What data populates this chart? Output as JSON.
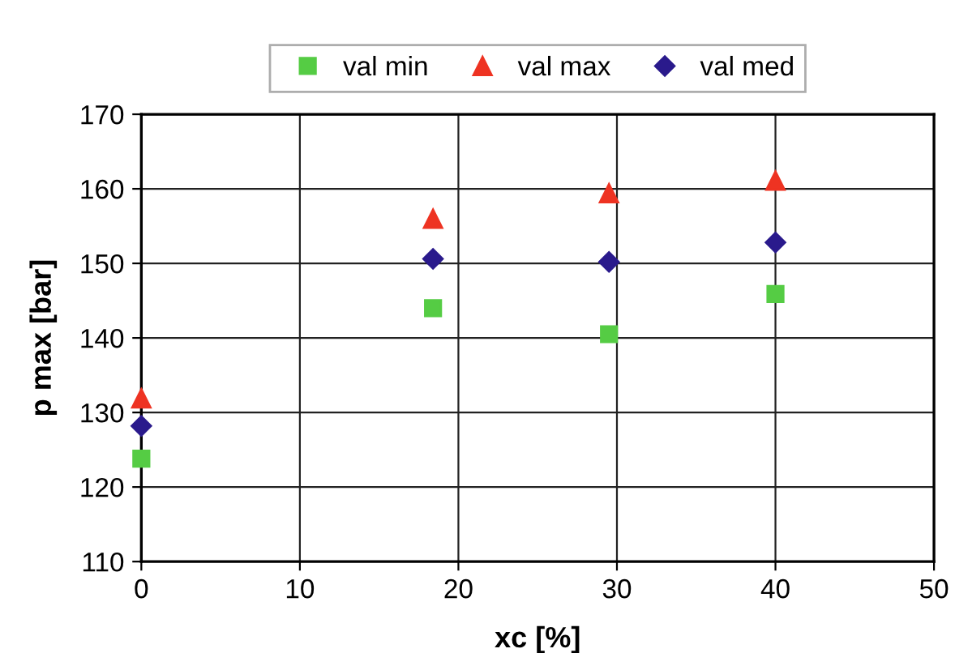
{
  "chart_data": {
    "type": "scatter",
    "xlabel": "xc [%]",
    "ylabel": "p max [bar]",
    "xlim": [
      0,
      50
    ],
    "xticks": [
      0,
      10,
      20,
      30,
      40,
      50
    ],
    "ylim": [
      110,
      170
    ],
    "yticks": [
      110,
      120,
      130,
      140,
      150,
      160,
      170
    ],
    "grid": true,
    "legend": "top",
    "series": [
      {
        "name": "val min",
        "color": "#55cc44",
        "marker": "square",
        "x": [
          0,
          18.4,
          29.5,
          40
        ],
        "values": [
          123.8,
          144,
          140.5,
          145.9
        ]
      },
      {
        "name": "val max",
        "color": "#ee3322",
        "marker": "triangle",
        "x": [
          0,
          18.4,
          29.5,
          40
        ],
        "values": [
          131.9,
          156,
          159.4,
          161.1
        ]
      },
      {
        "name": "val med",
        "color": "#2a1a8c",
        "marker": "diamond",
        "x": [
          0,
          18.4,
          29.5,
          40
        ],
        "values": [
          128.2,
          150.6,
          150.2,
          152.8
        ]
      }
    ]
  }
}
